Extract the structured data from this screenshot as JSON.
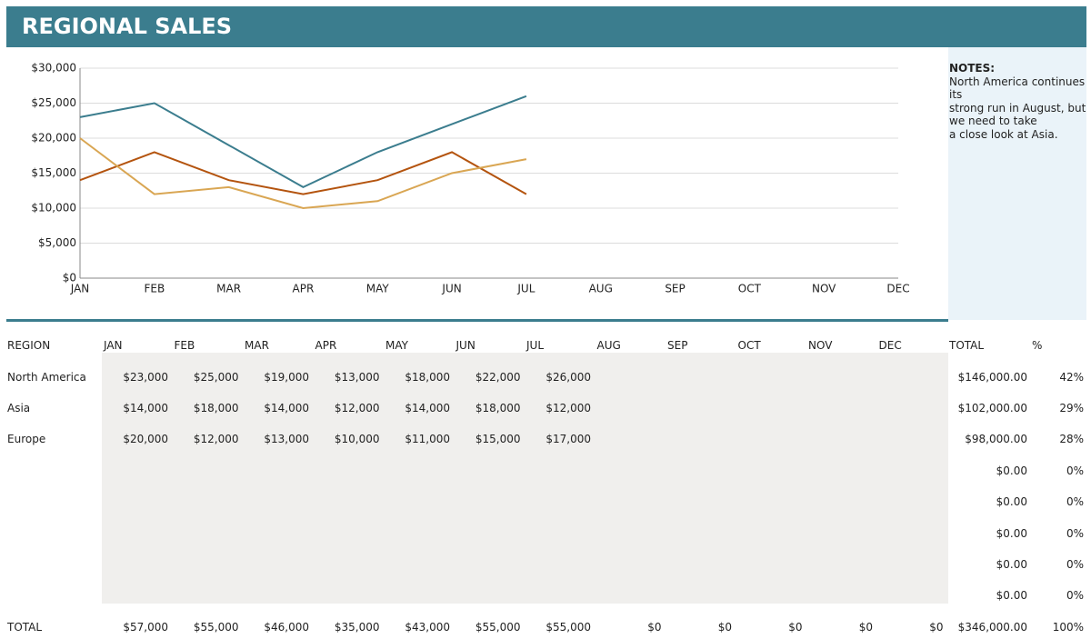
{
  "header": {
    "title": "REGIONAL SALES"
  },
  "chart_data": {
    "type": "line",
    "categories": [
      "JAN",
      "FEB",
      "MAR",
      "APR",
      "MAY",
      "JUN",
      "JUL",
      "AUG",
      "SEP",
      "OCT",
      "NOV",
      "DEC"
    ],
    "series": [
      {
        "color": "#3b7d8e",
        "values": [
          23000,
          25000,
          19000,
          13000,
          18000,
          22000,
          26000,
          null,
          null,
          null,
          null,
          null
        ]
      },
      {
        "color": "#b4540f",
        "values": [
          14000,
          18000,
          14000,
          12000,
          14000,
          18000,
          12000,
          null,
          null,
          null,
          null,
          null
        ]
      },
      {
        "color": "#d9a653",
        "values": [
          20000,
          12000,
          13000,
          10000,
          11000,
          15000,
          17000,
          null,
          null,
          null,
          null,
          null
        ]
      }
    ],
    "ylim": [
      0,
      30000
    ],
    "yticks": [
      {
        "value": 0,
        "label": "$0"
      },
      {
        "value": 5000,
        "label": "$5,000"
      },
      {
        "value": 10000,
        "label": "$10,000"
      },
      {
        "value": 15000,
        "label": "$15,000"
      },
      {
        "value": 20000,
        "label": "$20,000"
      },
      {
        "value": 25000,
        "label": "$25,000"
      },
      {
        "value": 30000,
        "label": "$30,000"
      }
    ],
    "grid": true
  },
  "notes": {
    "label": "NOTES:",
    "lines": [
      "North America continues",
      "its",
      "strong run in August, but",
      "we need to take",
      "a close look at Asia."
    ]
  },
  "table": {
    "header": [
      "REGION",
      "JAN",
      "FEB",
      "MAR",
      "APR",
      "MAY",
      "JUN",
      "JUL",
      "AUG",
      "SEP",
      "OCT",
      "NOV",
      "DEC",
      "TOTAL",
      "%"
    ],
    "rows": [
      {
        "region": "North America",
        "cells": [
          "$23,000",
          "$25,000",
          "$19,000",
          "$13,000",
          "$18,000",
          "$22,000",
          "$26,000"
        ],
        "total": "$146,000.00",
        "pct": "42%"
      },
      {
        "region": "Asia",
        "cells": [
          "$14,000",
          "$18,000",
          "$14,000",
          "$12,000",
          "$14,000",
          "$18,000",
          "$12,000"
        ],
        "total": "$102,000.00",
        "pct": "29%"
      },
      {
        "region": "Europe",
        "cells": [
          "$20,000",
          "$12,000",
          "$13,000",
          "$10,000",
          "$11,000",
          "$15,000",
          "$17,000"
        ],
        "total": "$98,000.00",
        "pct": "28%"
      },
      {
        "total": "$0.00",
        "pct": "0%"
      },
      {
        "total": "$0.00",
        "pct": "0%"
      },
      {
        "total": "$0.00",
        "pct": "0%"
      },
      {
        "total": "$0.00",
        "pct": "0%"
      },
      {
        "total": "$0.00",
        "pct": "0%"
      }
    ],
    "footer": {
      "region": "TOTAL",
      "cells": [
        "$57,000",
        "$55,000",
        "$46,000",
        "$35,000",
        "$43,000",
        "$55,000",
        "$55,000",
        "$0",
        "$0",
        "$0",
        "$0",
        "$0"
      ],
      "total": "$346,000.00",
      "pct": "100%"
    }
  }
}
